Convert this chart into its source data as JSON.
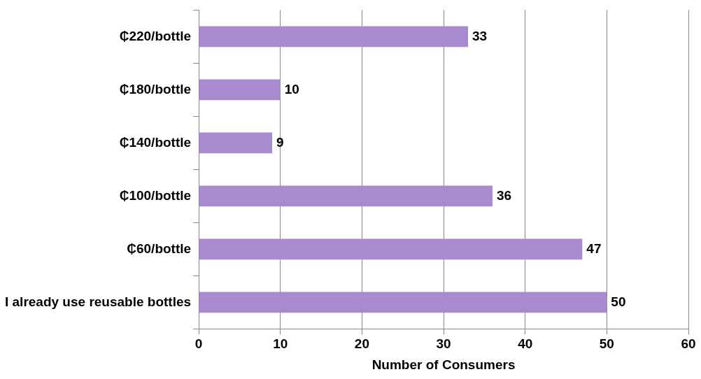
{
  "chart_data": {
    "type": "bar",
    "orientation": "horizontal",
    "xlabel": "Number of Consumers",
    "categories": [
      "₵220/bottle",
      "₵180/bottle",
      "₵140/bottle",
      "₵100/bottle",
      "₵60/bottle",
      "I already use reusable bottles"
    ],
    "values": [
      33,
      10,
      9,
      36,
      47,
      50
    ],
    "color": "#a88bcf",
    "xlim": [
      0,
      60
    ],
    "xticks": [
      0,
      10,
      20,
      30,
      40,
      50,
      60
    ],
    "grid": "x",
    "data_labels": true,
    "legend": false
  }
}
